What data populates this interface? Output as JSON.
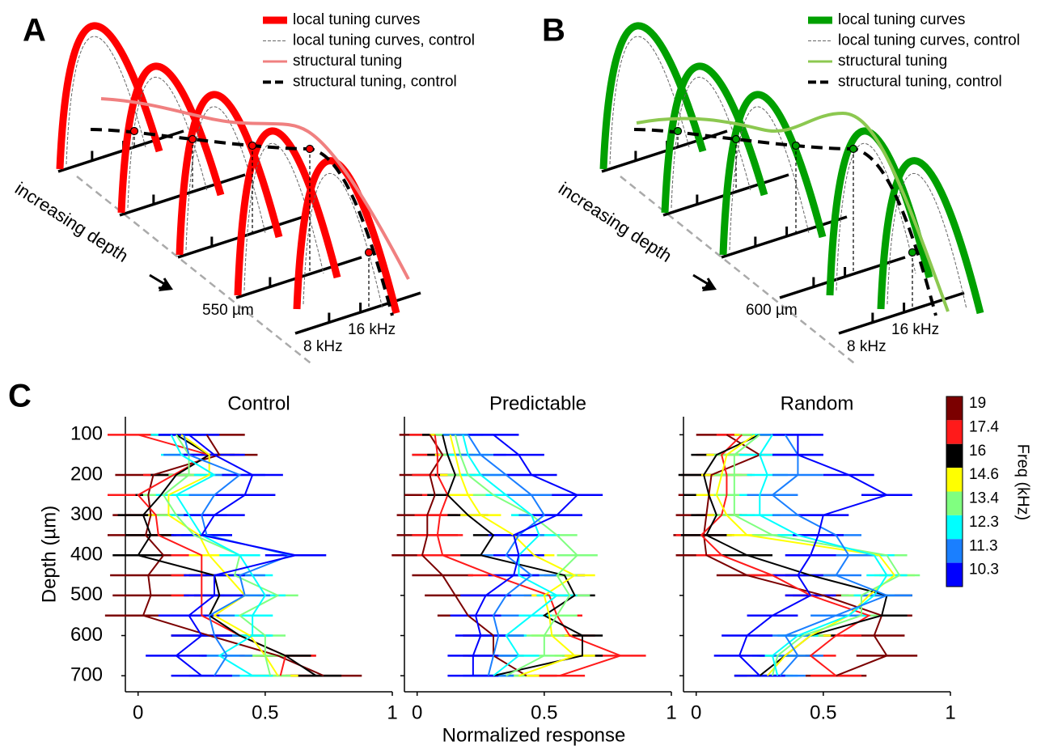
{
  "panels": {
    "A": {
      "label": "A",
      "legend": [
        "local tuning curves",
        "local tuning curves, control",
        "structural tuning",
        "structural tuning, control"
      ],
      "axis_note": "increasing depth",
      "depth": "550 µm",
      "freq_high": "16 kHz",
      "freq_low": "8 kHz",
      "color": "#ff0000",
      "structural_color": "#f08080"
    },
    "B": {
      "label": "B",
      "legend": [
        "local tuning curves",
        "local tuning curves, control",
        "structural tuning",
        "structural tuning, control"
      ],
      "axis_note": "increasing depth",
      "depth": "600 µm",
      "freq_high": "16 kHz",
      "freq_low": "8 kHz",
      "color": "#00a000",
      "structural_color": "#8cc850"
    },
    "C": {
      "label": "C"
    }
  },
  "chart_data": [
    {
      "type": "line",
      "title": "Control",
      "y_label": "Depth (µm)",
      "y": [
        100,
        150,
        200,
        250,
        300,
        350,
        400,
        450,
        500,
        550,
        600,
        650,
        700
      ],
      "xlim": [
        -0.05,
        1
      ],
      "xticks": [
        0,
        0.5,
        1
      ],
      "ylim": [
        55,
        740
      ],
      "yticks": [
        100,
        200,
        300,
        400,
        500,
        600,
        700
      ],
      "y_inverted": true,
      "series": [
        {
          "name": "19",
          "color": "#7b0000",
          "error": 0.15,
          "values": [
            0.27,
            0.32,
            0.06,
            0.04,
            0.05,
            0.03,
            0.1,
            0.04,
            0.05,
            0.02,
            0.28,
            0.55,
            0.73
          ]
        },
        {
          "name": "17.4",
          "color": "#ff1a1a",
          "error": 0.12,
          "values": [
            0.0,
            0.28,
            0.14,
            0.0,
            0.07,
            0.08,
            0.25,
            0.25,
            0.25,
            0.25,
            0.4,
            0.58,
            0.56
          ]
        },
        {
          "name": "16",
          "color": "#000000",
          "error": 0.1,
          "values": [
            0.15,
            0.28,
            0.15,
            0.09,
            0.02,
            0.05,
            0.0,
            0.3,
            0.32,
            0.28,
            0.4,
            0.58,
            0.7
          ]
        },
        {
          "name": "14.6",
          "color": "#ffff00",
          "error": 0.08,
          "values": [
            0.17,
            0.28,
            0.28,
            0.12,
            0.12,
            0.24,
            0.28,
            0.35,
            0.42,
            0.3,
            0.44,
            0.5,
            0.55
          ]
        },
        {
          "name": "13.4",
          "color": "#80ff80",
          "error": 0.08,
          "values": [
            0.15,
            0.2,
            0.2,
            0.1,
            0.15,
            0.22,
            0.4,
            0.38,
            0.55,
            0.4,
            0.5,
            0.5,
            0.52
          ]
        },
        {
          "name": "12.3",
          "color": "#00ffff",
          "error": 0.08,
          "values": [
            0.13,
            0.17,
            0.3,
            0.15,
            0.2,
            0.25,
            0.4,
            0.45,
            0.5,
            0.45,
            0.45,
            0.32,
            0.45
          ]
        },
        {
          "name": "11.3",
          "color": "#1a7fff",
          "error": 0.1,
          "values": [
            0.18,
            0.2,
            0.4,
            0.3,
            0.25,
            0.27,
            0.6,
            0.4,
            0.42,
            0.28,
            0.3,
            0.35,
            0.3
          ]
        },
        {
          "name": "10.3",
          "color": "#0000ff",
          "error": 0.12,
          "values": [
            0.2,
            0.3,
            0.45,
            0.42,
            0.3,
            0.25,
            0.62,
            0.3,
            0.3,
            0.2,
            0.25,
            0.15,
            0.25
          ]
        }
      ]
    },
    {
      "type": "line",
      "title": "Predictable",
      "x_label": "Normalized response",
      "y": [
        100,
        150,
        200,
        250,
        300,
        350,
        400,
        450,
        500,
        550,
        600,
        650,
        700
      ],
      "xlim": [
        -0.05,
        1
      ],
      "xticks": [
        0,
        0.5,
        1
      ],
      "ylim": [
        55,
        740
      ],
      "yticks": [
        100,
        200,
        300,
        400,
        500,
        600,
        700
      ],
      "y_inverted": true,
      "series": [
        {
          "name": "19",
          "color": "#7b0000",
          "error": 0.12,
          "values": [
            0.05,
            0.1,
            0.05,
            0.07,
            0.04,
            0.04,
            0.02,
            0.1,
            0.15,
            0.2,
            0.3,
            0.3,
            0.43
          ]
        },
        {
          "name": "17.4",
          "color": "#ff1a1a",
          "error": 0.1,
          "values": [
            0.07,
            0.08,
            0.08,
            0.12,
            0.09,
            0.08,
            0.1,
            0.3,
            0.52,
            0.55,
            0.6,
            0.8,
            0.56
          ]
        },
        {
          "name": "16",
          "color": "#000000",
          "error": 0.08,
          "values": [
            0.1,
            0.12,
            0.15,
            0.12,
            0.2,
            0.3,
            0.25,
            0.58,
            0.62,
            0.5,
            0.65,
            0.65,
            0.3
          ]
        },
        {
          "name": "14.6",
          "color": "#ffff00",
          "error": 0.08,
          "values": [
            0.13,
            0.15,
            0.17,
            0.2,
            0.25,
            0.38,
            0.46,
            0.62,
            0.5,
            0.52,
            0.53,
            0.62,
            0.4
          ]
        },
        {
          "name": "13.4",
          "color": "#80ff80",
          "error": 0.08,
          "values": [
            0.15,
            0.17,
            0.2,
            0.3,
            0.45,
            0.55,
            0.63,
            0.55,
            0.6,
            0.55,
            0.5,
            0.5,
            0.35
          ]
        },
        {
          "name": "12.3",
          "color": "#00ffff",
          "error": 0.08,
          "values": [
            0.18,
            0.2,
            0.25,
            0.35,
            0.45,
            0.48,
            0.4,
            0.4,
            0.55,
            0.45,
            0.35,
            0.4,
            0.3
          ]
        },
        {
          "name": "11.3",
          "color": "#1a7fff",
          "error": 0.1,
          "values": [
            0.2,
            0.25,
            0.35,
            0.45,
            0.5,
            0.4,
            0.35,
            0.45,
            0.35,
            0.3,
            0.32,
            0.3,
            0.28
          ]
        },
        {
          "name": "10.3",
          "color": "#0000ff",
          "error": 0.1,
          "values": [
            0.3,
            0.4,
            0.45,
            0.63,
            0.55,
            0.38,
            0.4,
            0.38,
            0.27,
            0.23,
            0.25,
            0.22,
            0.22
          ]
        }
      ]
    },
    {
      "type": "line",
      "title": "Random",
      "legend_title": "Freq (kHz)",
      "y": [
        100,
        150,
        200,
        250,
        300,
        350,
        400,
        450,
        500,
        550,
        600,
        650,
        700
      ],
      "xlim": [
        -0.05,
        1
      ],
      "xticks": [
        0,
        0.5,
        1
      ],
      "ylim": [
        55,
        740
      ],
      "yticks": [
        100,
        200,
        300,
        400,
        500,
        600,
        700
      ],
      "y_inverted": true,
      "series": [
        {
          "name": "19",
          "color": "#7b0000",
          "error": 0.12,
          "values": [
            0.12,
            0.25,
            0.06,
            0.05,
            0.04,
            0.03,
            0.04,
            0.2,
            0.5,
            0.73,
            0.7,
            0.75,
            0.55
          ]
        },
        {
          "name": "17.4",
          "color": "#ff1a1a",
          "error": 0.1,
          "values": [
            0.18,
            0.1,
            0.12,
            0.12,
            0.1,
            0.02,
            0.1,
            0.3,
            0.45,
            0.68,
            0.55,
            0.45,
            0.55
          ]
        },
        {
          "name": "16",
          "color": "#000000",
          "error": 0.1,
          "values": [
            0.25,
            0.08,
            0.03,
            0.05,
            0.08,
            0.04,
            0.2,
            0.45,
            0.75,
            0.73,
            0.45,
            0.35,
            0.25
          ]
        },
        {
          "name": "14.6",
          "color": "#ffff00",
          "error": 0.08,
          "values": [
            0.23,
            0.12,
            0.1,
            0.08,
            0.12,
            0.2,
            0.72,
            0.78,
            0.68,
            0.6,
            0.45,
            0.35,
            0.28
          ]
        },
        {
          "name": "13.4",
          "color": "#80ff80",
          "error": 0.08,
          "values": [
            0.25,
            0.15,
            0.15,
            0.15,
            0.15,
            0.3,
            0.75,
            0.8,
            0.65,
            0.65,
            0.42,
            0.32,
            0.3
          ]
        },
        {
          "name": "12.3",
          "color": "#00ffff",
          "error": 0.08,
          "values": [
            0.3,
            0.25,
            0.28,
            0.25,
            0.25,
            0.4,
            0.7,
            0.75,
            0.7,
            0.6,
            0.4,
            0.3,
            0.32
          ]
        },
        {
          "name": "11.3",
          "color": "#1a7fff",
          "error": 0.1,
          "values": [
            0.35,
            0.4,
            0.4,
            0.3,
            0.4,
            0.55,
            0.6,
            0.55,
            0.75,
            0.55,
            0.35,
            0.4,
            0.33
          ]
        },
        {
          "name": "10.3",
          "color": "#0000ff",
          "error": 0.1,
          "values": [
            0.4,
            0.4,
            0.6,
            0.75,
            0.5,
            0.48,
            0.45,
            0.4,
            0.45,
            0.3,
            0.2,
            0.17,
            0.25
          ]
        }
      ]
    }
  ]
}
